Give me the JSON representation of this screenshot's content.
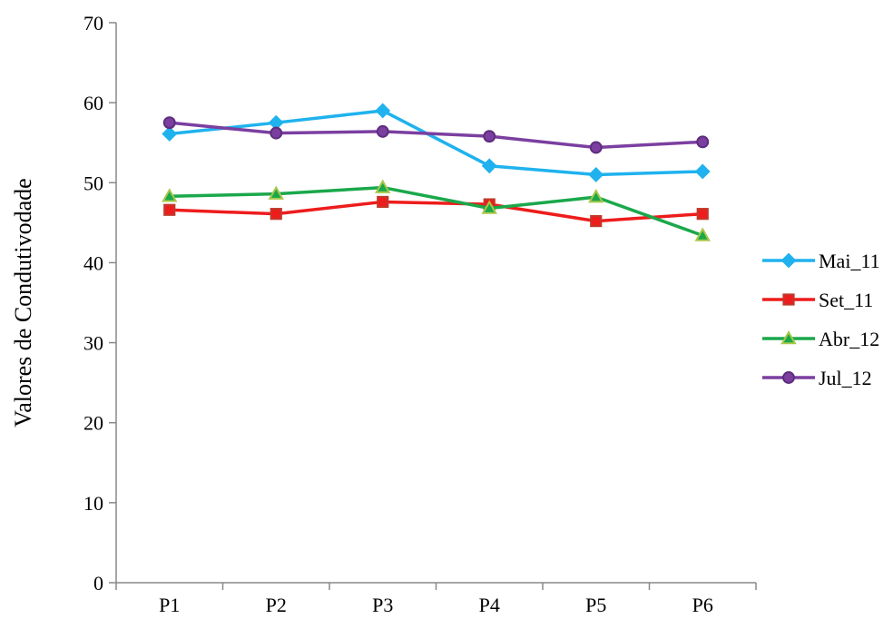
{
  "chart_data": {
    "type": "line",
    "title": "",
    "xlabel": "",
    "ylabel": "Valores de Condutivodade",
    "categories": [
      "P1",
      "P2",
      "P3",
      "P4",
      "P5",
      "P6"
    ],
    "ylim": [
      0,
      70
    ],
    "yticks": [
      0,
      10,
      20,
      30,
      40,
      50,
      60,
      70
    ],
    "grid": false,
    "legend_position": "right",
    "series": [
      {
        "name": "Mai_11",
        "values": [
          56.1,
          57.5,
          59.0,
          52.1,
          51.0,
          51.4
        ],
        "color": "#1fb2ee",
        "marker": "diamond",
        "marker_fill": "#1fb2ee",
        "marker_stroke": "#1fb2ee"
      },
      {
        "name": "Set_11",
        "values": [
          46.6,
          46.1,
          47.6,
          47.3,
          45.2,
          46.1
        ],
        "color": "#ee1c1c",
        "marker": "square",
        "marker_fill": "#ee1c1c",
        "marker_stroke": "#c0392b"
      },
      {
        "name": "Abr_12",
        "values": [
          48.3,
          48.6,
          49.4,
          46.8,
          48.2,
          43.4
        ],
        "color": "#1aa84b",
        "marker": "triangle",
        "marker_fill": "#1aa84b",
        "marker_stroke": "#a8c84a"
      },
      {
        "name": "Jul_12",
        "values": [
          57.5,
          56.2,
          56.4,
          55.8,
          54.4,
          55.1
        ],
        "color": "#7b3fa0",
        "marker": "circle",
        "marker_fill": "#7b3fa0",
        "marker_stroke": "#5e2d7d"
      }
    ]
  }
}
